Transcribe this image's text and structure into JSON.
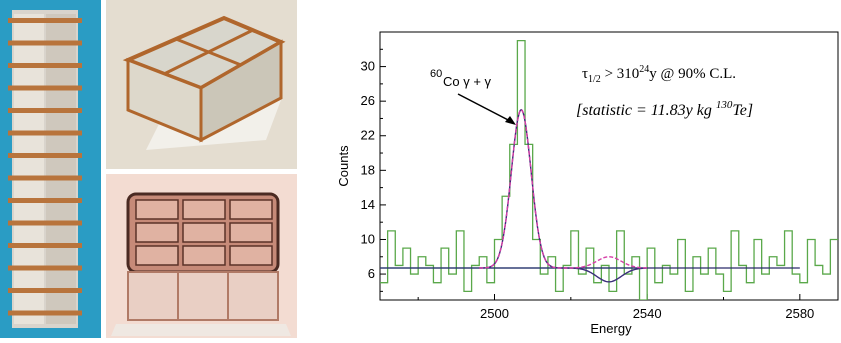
{
  "photos": [
    {
      "name": "tower-photo"
    },
    {
      "name": "four-crystal-module-photo"
    },
    {
      "name": "nine-crystal-module-photo"
    }
  ],
  "chart_data": {
    "type": "line",
    "xlabel": "Energy",
    "ylabel": "Counts",
    "xlim": [
      2470,
      2590
    ],
    "ylim": [
      3,
      34
    ],
    "x_ticks": [
      2500,
      2540,
      2580
    ],
    "y_ticks": [
      6,
      10,
      14,
      18,
      22,
      26,
      30
    ],
    "grid": false,
    "annotations": {
      "peak_label_sup": "60",
      "peak_label_main": "Co  γ + γ",
      "halflife_tau": "τ",
      "halflife_sub": "1/2",
      "halflife_mid": " > 310",
      "halflife_sup": "24",
      "halflife_tail": "y @ 90% C.L.",
      "statistic_main": "[statistic = 11.83y kg ",
      "statistic_sup": "130",
      "statistic_tail": "Te]"
    },
    "series": [
      {
        "kind": "histogram",
        "color": "#5aa84a",
        "bin_width": 2,
        "x": [
          2471,
          2473,
          2475,
          2477,
          2479,
          2481,
          2483,
          2485,
          2487,
          2489,
          2491,
          2493,
          2495,
          2497,
          2499,
          2501,
          2503,
          2505,
          2507,
          2509,
          2511,
          2513,
          2515,
          2517,
          2519,
          2521,
          2523,
          2525,
          2527,
          2529,
          2531,
          2533,
          2535,
          2537,
          2539,
          2541,
          2543,
          2545,
          2547,
          2549,
          2551,
          2553,
          2555,
          2557,
          2559,
          2561,
          2563,
          2565,
          2567,
          2569,
          2571,
          2573,
          2575,
          2577,
          2579,
          2581,
          2583,
          2585,
          2587,
          2589
        ],
        "values": [
          5,
          11,
          7,
          9,
          6,
          8,
          7,
          5,
          9,
          6,
          11,
          4,
          7,
          8,
          5,
          10,
          15,
          21,
          33,
          21,
          10,
          6,
          8,
          4,
          7,
          11,
          6,
          9,
          5,
          7,
          4,
          11,
          6,
          8,
          3,
          9,
          5,
          7,
          6,
          10,
          4,
          8,
          6,
          9,
          6,
          4,
          11,
          7,
          5,
          10,
          6,
          8,
          7,
          11,
          6,
          5,
          10,
          7,
          6,
          10
        ]
      },
      {
        "kind": "background",
        "color": "#3aa0a0",
        "x": [
          2470,
          2540
        ],
        "values": [
          6.7,
          6.7
        ]
      },
      {
        "kind": "fit",
        "color": "#2a2a6a",
        "x": [
          2470,
          2580
        ],
        "values": [
          6.7,
          6.7
        ]
      },
      {
        "kind": "peak-fit-dark",
        "color": "#3b2f7a",
        "center": 2507,
        "sigma": 2.6,
        "amplitude": 18.3,
        "baseline": 6.7,
        "x_range": [
          2496,
          2540
        ],
        "dip_center": 2530,
        "dip_sigma": 3.2,
        "dip_amp": -1.6
      },
      {
        "kind": "peak-fit-magenta",
        "color": "#d63fa8",
        "center": 2507,
        "sigma": 2.6,
        "amplitude": 18.3,
        "baseline": 6.7,
        "x_range": [
          2496,
          2540
        ],
        "dip_center": 2530,
        "dip_sigma": 3.2,
        "dip_amp": 1.3
      }
    ]
  }
}
